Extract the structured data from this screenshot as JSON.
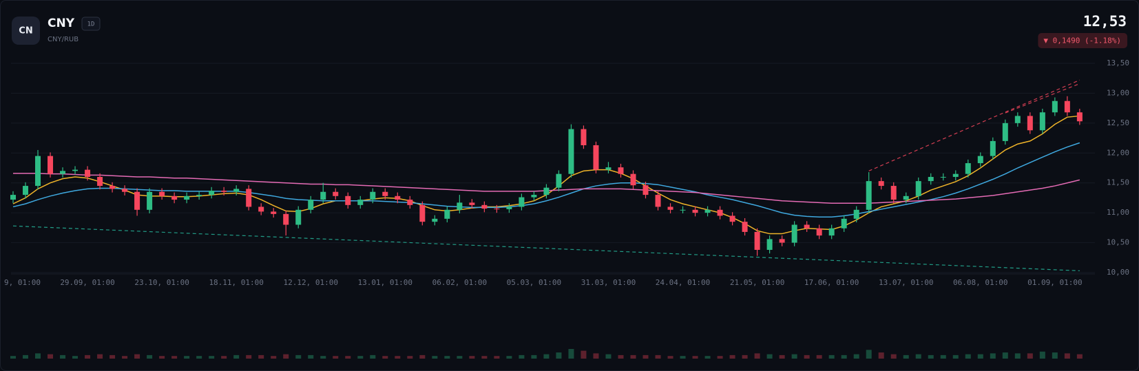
{
  "header": {
    "icon": "CN",
    "symbol": "CNY",
    "timeframe": "1D",
    "pair": "CNY/RUB",
    "price": "12,53",
    "change": "▼ 0,1490 (-1.18%)"
  },
  "chart_data": {
    "type": "candlestick",
    "up_color": "#2ebd85",
    "down_color": "#f6465d",
    "categories": [
      "9, 01:00",
      null,
      null,
      null,
      null,
      null,
      "29.09, 01:00",
      null,
      null,
      null,
      null,
      null,
      "23.10, 01:00",
      null,
      null,
      null,
      null,
      null,
      "18.11, 01:00",
      null,
      null,
      null,
      null,
      null,
      "12.12, 01:00",
      null,
      null,
      null,
      null,
      null,
      "13.01, 01:00",
      null,
      null,
      null,
      null,
      null,
      "06.02, 01:00",
      null,
      null,
      null,
      null,
      null,
      "05.03, 01:00",
      null,
      null,
      null,
      null,
      null,
      "31.03, 01:00",
      null,
      null,
      null,
      null,
      null,
      "24.04, 01:00",
      null,
      null,
      null,
      null,
      null,
      "21.05, 01:00",
      null,
      null,
      null,
      null,
      null,
      "17.06, 01:00",
      null,
      null,
      null,
      null,
      null,
      "13.07, 01:00",
      null,
      null,
      null,
      null,
      null,
      "06.08, 01:00",
      null,
      null,
      null,
      null,
      null,
      "01.09, 01:00",
      null,
      null
    ],
    "open": [
      11.22,
      11.3,
      11.45,
      11.95,
      11.65,
      11.7,
      11.72,
      11.6,
      11.45,
      11.4,
      11.35,
      11.05,
      11.35,
      11.28,
      11.22,
      11.28,
      11.3,
      11.37,
      11.35,
      11.4,
      11.1,
      11.02,
      10.98,
      10.8,
      11.05,
      11.22,
      11.35,
      11.28,
      11.13,
      11.22,
      11.35,
      11.28,
      11.22,
      11.13,
      10.85,
      10.9,
      11.05,
      11.17,
      11.13,
      11.07,
      11.06,
      11.1,
      11.26,
      11.3,
      11.42,
      11.65,
      12.4,
      12.13,
      11.72,
      11.76,
      11.65,
      11.46,
      11.3,
      11.1,
      11.05,
      11.05,
      11.0,
      11.05,
      10.95,
      10.85,
      10.68,
      10.38,
      10.56,
      10.5,
      10.8,
      10.74,
      10.62,
      10.74,
      10.9,
      11.05,
      11.53,
      11.45,
      11.22,
      11.28,
      11.53,
      11.6,
      11.6,
      11.65,
      11.83,
      11.95,
      12.2,
      12.5,
      12.62,
      12.38,
      12.68,
      12.87,
      12.68
    ],
    "high": [
      11.36,
      11.51,
      12.05,
      12.01,
      11.76,
      11.78,
      11.78,
      11.66,
      11.51,
      11.46,
      11.41,
      11.41,
      11.41,
      11.34,
      11.34,
      11.36,
      11.43,
      11.43,
      11.46,
      11.46,
      11.16,
      11.08,
      11.04,
      11.11,
      11.28,
      11.5,
      11.41,
      11.34,
      11.28,
      11.41,
      11.41,
      11.34,
      11.28,
      11.19,
      10.96,
      11.11,
      11.3,
      11.23,
      11.19,
      11.13,
      11.16,
      11.32,
      11.36,
      11.48,
      11.71,
      12.48,
      12.46,
      12.19,
      11.85,
      11.82,
      11.71,
      11.52,
      11.36,
      11.16,
      11.11,
      11.11,
      11.11,
      11.11,
      11.01,
      10.91,
      10.74,
      10.62,
      10.62,
      10.86,
      10.86,
      10.8,
      10.8,
      10.96,
      11.11,
      11.68,
      11.59,
      11.51,
      11.34,
      11.59,
      11.66,
      11.66,
      11.71,
      11.89,
      12.01,
      12.26,
      12.56,
      12.68,
      12.68,
      12.74,
      12.93,
      12.95,
      12.74
    ],
    "low": [
      11.16,
      11.24,
      11.39,
      11.59,
      11.59,
      11.64,
      11.54,
      11.39,
      11.34,
      11.29,
      10.95,
      10.99,
      11.22,
      11.16,
      11.16,
      11.22,
      11.24,
      11.29,
      11.29,
      11.04,
      10.96,
      10.92,
      10.62,
      10.74,
      10.99,
      11.16,
      11.22,
      11.07,
      11.07,
      11.16,
      11.22,
      11.16,
      11.07,
      10.79,
      10.79,
      10.84,
      10.99,
      11.07,
      11.01,
      11.0,
      11.0,
      11.04,
      11.2,
      11.24,
      11.36,
      11.59,
      12.07,
      11.66,
      11.66,
      11.59,
      11.4,
      11.24,
      11.04,
      10.99,
      10.99,
      10.94,
      10.94,
      10.89,
      10.79,
      10.62,
      10.28,
      10.32,
      10.44,
      10.44,
      10.68,
      10.56,
      10.56,
      10.68,
      10.84,
      10.99,
      11.39,
      11.16,
      11.16,
      11.22,
      11.47,
      11.54,
      11.54,
      11.59,
      11.77,
      11.89,
      12.14,
      12.44,
      12.32,
      12.32,
      12.62,
      12.62,
      12.47
    ],
    "close": [
      11.3,
      11.45,
      11.95,
      11.65,
      11.7,
      11.72,
      11.6,
      11.45,
      11.4,
      11.35,
      11.05,
      11.35,
      11.28,
      11.22,
      11.28,
      11.3,
      11.37,
      11.35,
      11.4,
      11.1,
      11.02,
      10.98,
      10.8,
      11.05,
      11.22,
      11.35,
      11.28,
      11.13,
      11.22,
      11.35,
      11.28,
      11.22,
      11.13,
      10.85,
      10.9,
      11.05,
      11.17,
      11.13,
      11.07,
      11.06,
      11.1,
      11.26,
      11.3,
      11.42,
      11.65,
      12.4,
      12.13,
      11.72,
      11.76,
      11.65,
      11.46,
      11.3,
      11.1,
      11.05,
      11.05,
      11.0,
      11.05,
      10.95,
      10.85,
      10.68,
      10.38,
      10.56,
      10.5,
      10.8,
      10.74,
      10.62,
      10.74,
      10.9,
      11.05,
      11.53,
      11.45,
      11.22,
      11.28,
      11.53,
      11.6,
      11.6,
      11.65,
      11.83,
      11.95,
      12.2,
      12.5,
      12.62,
      12.38,
      12.68,
      12.87,
      12.68,
      12.53
    ],
    "volume": [
      3,
      4,
      6,
      5,
      4,
      3,
      4,
      5,
      4,
      3,
      5,
      4,
      3,
      3,
      3,
      3,
      3,
      3,
      4,
      4,
      4,
      3,
      5,
      4,
      4,
      3,
      3,
      3,
      3,
      4,
      3,
      3,
      3,
      4,
      3,
      3,
      3,
      3,
      3,
      3,
      3,
      4,
      4,
      5,
      7,
      11,
      9,
      6,
      5,
      4,
      4,
      4,
      4,
      3,
      3,
      3,
      3,
      3,
      4,
      4,
      6,
      5,
      4,
      5,
      4,
      4,
      4,
      4,
      5,
      10,
      7,
      5,
      4,
      5,
      4,
      4,
      4,
      5,
      5,
      6,
      7,
      6,
      6,
      8,
      7,
      6,
      5
    ],
    "moving_averages": [
      {
        "color": "#f0b429",
        "values": [
          11.15,
          11.25,
          11.4,
          11.5,
          11.57,
          11.6,
          11.58,
          11.52,
          11.45,
          11.38,
          11.3,
          11.28,
          11.28,
          11.27,
          11.27,
          11.28,
          11.3,
          11.32,
          11.33,
          11.3,
          11.22,
          11.12,
          11.03,
          11.02,
          11.07,
          11.15,
          11.2,
          11.2,
          11.2,
          11.23,
          11.25,
          11.24,
          11.2,
          11.12,
          11.05,
          11.03,
          11.05,
          11.08,
          11.1,
          11.1,
          11.12,
          11.15,
          11.2,
          11.3,
          11.45,
          11.62,
          11.7,
          11.72,
          11.72,
          11.66,
          11.57,
          11.45,
          11.33,
          11.22,
          11.15,
          11.1,
          11.05,
          11.0,
          10.92,
          10.82,
          10.7,
          10.65,
          10.65,
          10.7,
          10.74,
          10.73,
          10.72,
          10.78,
          10.88,
          11.0,
          11.1,
          11.15,
          11.2,
          11.28,
          11.38,
          11.45,
          11.52,
          11.62,
          11.75,
          11.9,
          12.05,
          12.15,
          12.2,
          12.32,
          12.48,
          12.6,
          12.62
        ]
      },
      {
        "color": "#3fa9e0",
        "values": [
          11.1,
          11.15,
          11.22,
          11.28,
          11.33,
          11.37,
          11.4,
          11.41,
          11.41,
          11.4,
          11.39,
          11.38,
          11.37,
          11.37,
          11.36,
          11.36,
          11.36,
          11.36,
          11.36,
          11.34,
          11.31,
          11.28,
          11.24,
          11.22,
          11.21,
          11.2,
          11.2,
          11.2,
          11.2,
          11.2,
          11.19,
          11.18,
          11.17,
          11.15,
          11.13,
          11.11,
          11.1,
          11.09,
          11.09,
          11.09,
          11.1,
          11.12,
          11.15,
          11.2,
          11.26,
          11.33,
          11.4,
          11.45,
          11.48,
          11.5,
          11.5,
          11.49,
          11.47,
          11.43,
          11.39,
          11.35,
          11.3,
          11.26,
          11.22,
          11.17,
          11.12,
          11.06,
          11.0,
          10.96,
          10.94,
          10.93,
          10.93,
          10.95,
          10.98,
          11.02,
          11.06,
          11.1,
          11.14,
          11.18,
          11.22,
          11.27,
          11.33,
          11.4,
          11.48,
          11.56,
          11.65,
          11.75,
          11.84,
          11.93,
          12.02,
          12.1,
          12.17
        ]
      },
      {
        "color": "#e56bb5",
        "values": [
          11.66,
          11.66,
          11.66,
          11.65,
          11.65,
          11.64,
          11.63,
          11.63,
          11.62,
          11.61,
          11.6,
          11.6,
          11.59,
          11.58,
          11.58,
          11.57,
          11.56,
          11.55,
          11.54,
          11.53,
          11.52,
          11.51,
          11.5,
          11.49,
          11.48,
          11.48,
          11.47,
          11.47,
          11.46,
          11.45,
          11.44,
          11.43,
          11.42,
          11.41,
          11.4,
          11.39,
          11.38,
          11.37,
          11.36,
          11.36,
          11.36,
          11.36,
          11.36,
          11.37,
          11.38,
          11.39,
          11.4,
          11.4,
          11.4,
          11.4,
          11.39,
          11.38,
          11.37,
          11.36,
          11.35,
          11.34,
          11.32,
          11.3,
          11.28,
          11.26,
          11.24,
          11.22,
          11.2,
          11.19,
          11.18,
          11.17,
          11.16,
          11.16,
          11.16,
          11.16,
          11.17,
          11.18,
          11.19,
          11.2,
          11.21,
          11.22,
          11.23,
          11.25,
          11.27,
          11.29,
          11.32,
          11.35,
          11.38,
          11.41,
          11.45,
          11.5,
          11.55
        ]
      }
    ],
    "trendlines": [
      {
        "color": "#26b59a",
        "x": [
          0,
          86
        ],
        "y": [
          10.78,
          10.03
        ]
      },
      {
        "color": "#f6465d",
        "x": [
          69,
          86
        ],
        "y": [
          11.7,
          13.22
        ]
      },
      {
        "color": "#f6465d",
        "x": [
          80,
          86
        ],
        "y": [
          12.67,
          13.16
        ]
      }
    ],
    "ylim": [
      10,
      13.5
    ],
    "yticks": [
      {
        "value": 10,
        "label": "10,00"
      },
      {
        "value": 10.5,
        "label": "10,50"
      },
      {
        "value": 11,
        "label": "11,00"
      },
      {
        "value": 11.5,
        "label": "11,50"
      },
      {
        "value": 12,
        "label": "12,00"
      },
      {
        "value": 12.5,
        "label": "12,50"
      },
      {
        "value": 13,
        "label": "13,00"
      },
      {
        "value": 13.5,
        "label": "13,50"
      }
    ],
    "grid": true
  }
}
